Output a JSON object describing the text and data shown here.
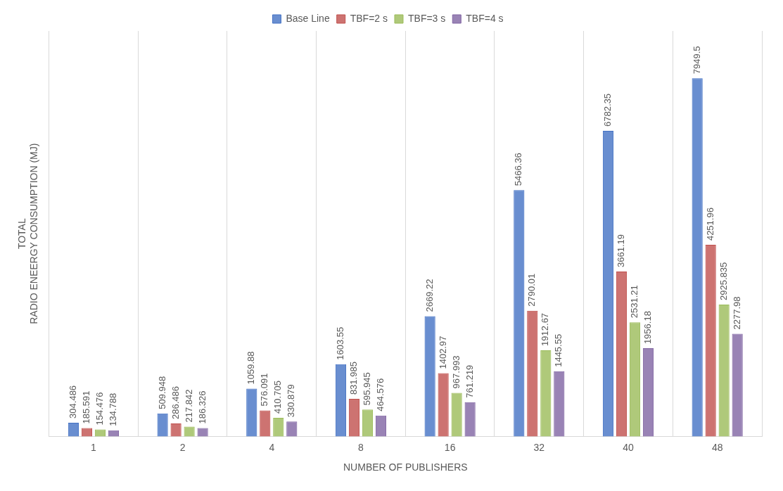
{
  "chart_data": {
    "type": "bar",
    "xlabel": "NUMBER OF PUBLISHERS",
    "ylabel": "TOTAL\nRADIO ENEERGY CONSUMPTION (MJ)",
    "categories": [
      "1",
      "2",
      "4",
      "8",
      "16",
      "32",
      "40",
      "48"
    ],
    "series": [
      {
        "name": "Base Line",
        "color": "#4472c4",
        "values": [
          304.486,
          509.948,
          1059.88,
          1603.55,
          2669.22,
          5466.36,
          6782.35,
          7949.5
        ]
      },
      {
        "name": "TBF=2 s",
        "color": "#c0504d",
        "values": [
          185.591,
          286.486,
          576.091,
          831.985,
          1402.97,
          2790.01,
          3661.19,
          4251.96
        ]
      },
      {
        "name": "TBF=3 s",
        "color": "#9bbb59",
        "values": [
          154.476,
          217.842,
          410.705,
          595.945,
          967.993,
          1912.67,
          2531.21,
          2925.835
        ]
      },
      {
        "name": "TBF=4 s",
        "color": "#8064a2",
        "values": [
          134.788,
          186.326,
          330.879,
          464.576,
          761.219,
          1445.55,
          1956.18,
          2277.98
        ]
      }
    ],
    "data_labels": true,
    "grid": "x",
    "legend": "top",
    "tick_labels": "x"
  }
}
